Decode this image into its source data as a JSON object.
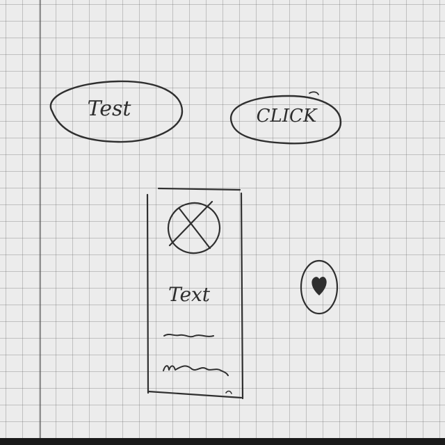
{
  "buttons": {
    "test_label": "Test",
    "click_label": "CLICK"
  },
  "card": {
    "text_label": "Text"
  },
  "icons": {
    "image_placeholder": "image-placeholder-icon",
    "heart": "heart-icon"
  },
  "colors": {
    "ink": "#2f2f2f",
    "paper": "#ececec",
    "grid": "#9a9a9a"
  }
}
